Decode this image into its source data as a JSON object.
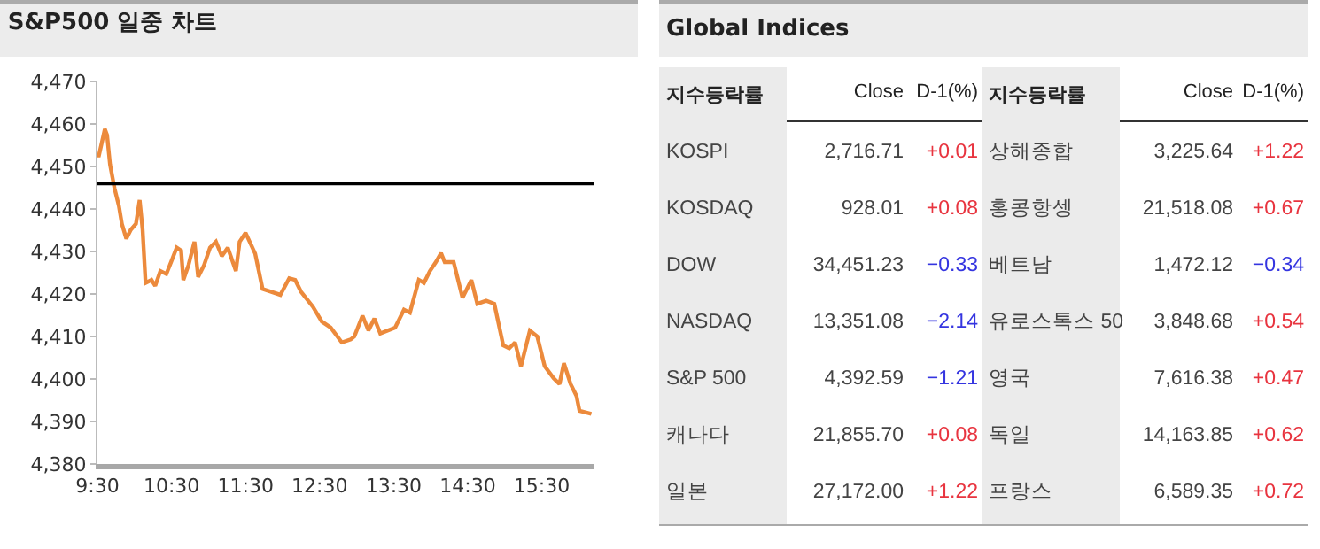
{
  "chart_data": [
    {
      "type": "line",
      "title": "S&P500 일중 차트",
      "color": "#ec8a3c",
      "x": [
        9.5,
        9.52,
        9.6,
        9.63,
        9.67,
        9.73,
        9.79,
        9.83,
        9.89,
        9.95,
        10.02,
        10.07,
        10.11,
        10.15,
        10.23,
        10.28,
        10.35,
        10.43,
        10.51,
        10.57,
        10.63,
        10.66,
        10.73,
        10.81,
        10.86,
        10.94,
        11.02,
        11.1,
        11.18,
        11.26,
        11.37,
        11.42,
        11.5,
        11.63,
        11.73,
        11.85,
        11.97,
        12.09,
        12.17,
        12.25,
        12.41,
        12.53,
        12.65,
        12.8,
        12.92,
        12.97,
        13.08,
        13.16,
        13.24,
        13.32,
        13.52,
        13.64,
        13.72,
        13.84,
        13.91,
        13.99,
        14.07,
        14.14,
        14.19,
        14.31,
        14.43,
        14.55,
        14.63,
        14.75,
        14.86,
        14.98,
        15.06,
        15.14,
        15.22,
        15.34,
        15.44,
        15.54,
        15.66,
        15.74,
        15.8,
        15.89,
        15.97,
        16.01,
        16.17
      ],
      "values": [
        4452.6,
        4452.6,
        4458.8,
        4457.4,
        4450.5,
        4444.9,
        4440.7,
        4436.5,
        4433,
        4435.1,
        4436.5,
        4442.1,
        4435.1,
        4422.6,
        4423.3,
        4421.9,
        4425.4,
        4424.7,
        4428.2,
        4430.9,
        4430.2,
        4423.3,
        4426.8,
        4432.3,
        4424,
        4426.8,
        4430.9,
        4432.3,
        4428.9,
        4430.9,
        4425.4,
        4432.3,
        4434.4,
        4429.5,
        4421.2,
        4420.5,
        4419.8,
        4423.7,
        4423.3,
        4420.5,
        4417,
        4413.5,
        4412.1,
        4408.6,
        4409.3,
        4410,
        4414.9,
        4411.4,
        4414.2,
        4410.7,
        4412.1,
        4416.3,
        4415.6,
        4423.3,
        4422.6,
        4425.4,
        4427.5,
        4429.6,
        4427.5,
        4427.5,
        4419.1,
        4423.3,
        4417.7,
        4418.4,
        4417.7,
        4407.9,
        4407.2,
        4408.6,
        4403,
        4411.4,
        4410,
        4403,
        4400.2,
        4398.8,
        4403.7,
        4398.8,
        4396,
        4392.5,
        4391.8
      ],
      "xlim": [
        9.5,
        16.2
      ],
      "xticks": [
        {
          "value": 9.5,
          "label": "9:30"
        },
        {
          "value": 10.5,
          "label": "10:30"
        },
        {
          "value": 11.5,
          "label": "11:30"
        },
        {
          "value": 12.5,
          "label": "12:30"
        },
        {
          "value": 13.5,
          "label": "13:30"
        },
        {
          "value": 14.5,
          "label": "14:30"
        },
        {
          "value": 15.5,
          "label": "15:30"
        }
      ],
      "ylim": [
        4380,
        4470
      ],
      "yticks": [
        {
          "value": 4380,
          "label": "4,380"
        },
        {
          "value": 4390,
          "label": "4,390"
        },
        {
          "value": 4400,
          "label": "4,400"
        },
        {
          "value": 4410,
          "label": "4,410"
        },
        {
          "value": 4420,
          "label": "4,420"
        },
        {
          "value": 4430,
          "label": "4,430"
        },
        {
          "value": 4440,
          "label": "4,440"
        },
        {
          "value": 4450,
          "label": "4,450"
        },
        {
          "value": 4460,
          "label": "4,460"
        },
        {
          "value": 4470,
          "label": "4,470"
        }
      ],
      "ref_lines": [
        {
          "axis": "y",
          "value": 4446,
          "color": "#000000"
        }
      ]
    },
    {
      "type": "other",
      "title": "Global Indices",
      "annotations": [
        "지수등락률",
        "Close",
        "D-1(%)",
        "지수등락률",
        "Close",
        "D-1(%)",
        "KOSPI",
        "2,716.71",
        "+0.01",
        "상해종합",
        "3,225.64",
        "+1.22",
        "KOSDAQ",
        "928.01",
        "+0.08",
        "홍콩항셍",
        "21,518.08",
        "+0.67",
        "DOW",
        "34,451.23",
        "−0.33",
        "베트남",
        "1,472.12",
        "−0.34",
        "NASDAQ",
        "13,351.08",
        "−2.14",
        "유로스톡스 50",
        "3,848.68",
        "+0.54",
        "S&P 500",
        "4,392.59",
        "−1.21",
        "영국",
        "7,616.38",
        "+0.47",
        "캐나다",
        "21,855.70",
        "+0.08",
        "독일",
        "14,163.85",
        "+0.62",
        "일본",
        "27,172.00",
        "+1.22",
        "프랑스",
        "6,589.35",
        "+0.72"
      ]
    }
  ]
}
